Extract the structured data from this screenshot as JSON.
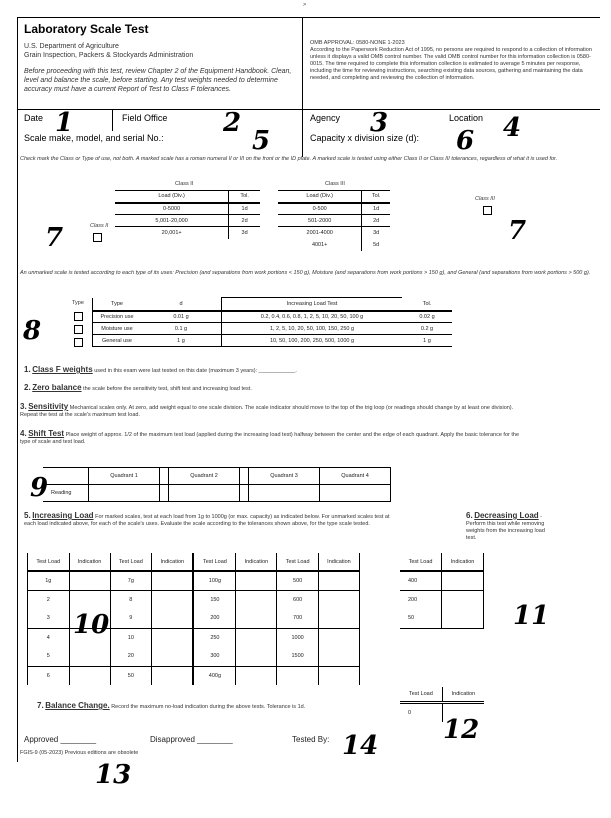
{
  "page_mark": ">",
  "header": {
    "title": "Laboratory Scale Test",
    "dept": "U.S. Department of Agriculture",
    "agency": "Grain Inspection, Packers & Stockyards Administration",
    "instructions": "Before proceeding with this test, review Chapter 2 of the Equipment Handbook. Clean, level and balance the scale, before starting. Any test weights needed to determine accuracy must have a current Report of Test to Class F tolerances.",
    "omb_title": "OMB APPROVAL: 0580-NONE 1-2023",
    "omb_text": "According to the Paperwork Reduction Act of 1995, no persons are required to respond to a collection of information unless it displays a valid OMB control number. The valid OMB control number for this information collection is 0580-0015. The time required to complete this information collection is estimated to average 5 minutes per response, including the time for reviewing instructions, searching existing data sources, gathering and maintaining the data needed, and completing and reviewing the collection of information."
  },
  "fields": {
    "date": "Date",
    "field_office": "Field Office",
    "agency": "Agency",
    "location": "Location",
    "scale": "Scale make, model, and serial No.:",
    "capacity": "Capacity x division size (d):"
  },
  "class_note": "Check mark the Class or Type of use, not both. A marked scale has a roman numeral II or III on the front or the ID plate. A marked scale is tested using either Class II or Class III tolerances, regardless of what it is used for.",
  "class2": {
    "title": "Class II",
    "label": "Class II",
    "headers": [
      "Load (Div.)",
      "Tol."
    ],
    "rows": [
      [
        "0-5000",
        "1d"
      ],
      [
        "5,001-20,000",
        "2d"
      ],
      [
        "20,001+",
        "3d"
      ]
    ]
  },
  "class3": {
    "title": "Class III",
    "label": "Class III",
    "headers": [
      "Load (Div.)",
      "Tol."
    ],
    "rows": [
      [
        "0-500",
        "1d"
      ],
      [
        "501-2000",
        "2d"
      ],
      [
        "2001-4000",
        "3d"
      ],
      [
        "4001+",
        "5d"
      ]
    ]
  },
  "unmarked_note": "An unmarked scale is tested according to each type of its uses: Precision (and separations from work portions < 150 g), Moisture (and separations from work portions > 150 g), and General (and separations from work portions > 500 g).",
  "type_table": {
    "label": "Type",
    "headers": [
      "Type",
      "d",
      "Increasing Load Test",
      "Tol."
    ],
    "rows": [
      [
        "Precision use",
        "0.01 g",
        "0.2, 0.4, 0.6, 0.8, 1, 2, 5, 10, 20, 50, 100 g",
        "0.02 g"
      ],
      [
        "Moisture use",
        "0.1 g",
        "1, 2, 5, 10, 20, 50, 100, 150, 250 g",
        "0.2 g"
      ],
      [
        "General use",
        "1 g",
        "10, 50, 100, 200, 250, 500, 1000 g",
        "1 g"
      ]
    ]
  },
  "steps": [
    {
      "n": "1.",
      "title": "Class F weights",
      "text": " used in this exam were last tested on this date (maximum 3 years): ____________."
    },
    {
      "n": "2.",
      "title": "Zero balance",
      "text": " the scale before the sensitivity test, shift test and increasing load test."
    },
    {
      "n": "3.",
      "title": "Sensitivity",
      "text": " Mechanical scales only. At zero, add weight equal to one scale division. The scale indicator should move to the top of the trig loop (or readings should change by at least one division). Repeat the test at the scale's maximum test load."
    },
    {
      "n": "4.",
      "title": "Shift Test",
      "text": " Place weight of approx. 1/2 of the maximum test load (applied during the increasing load test) halfway between the center and the edge of each quadrant. Apply the basic tolerance for the type of scale and test load."
    }
  ],
  "shift": {
    "row_label": "Reading",
    "quadrants": [
      "Quadrant 1",
      "Quadrant 2",
      "Quadrant 3",
      "Quadrant 4"
    ]
  },
  "increasing": {
    "n": "5.",
    "title": "Increasing Load",
    "text": " For marked scales, test at each load from 1g to 1000g (or max. capacity) as indicated below. For unmarked scales test at each load indicated above, for each of the scale's uses. Evaluate the scale according to the tolerances shown above, for the type scale tested.",
    "headers": [
      "Test Load",
      "Indication",
      "Test Load",
      "Indication",
      "Test Load",
      "Indication",
      "Test Load",
      "Indication"
    ],
    "cols": [
      [
        "1g",
        "2",
        "3",
        "4",
        "5",
        "6"
      ],
      [
        "7g",
        "8",
        "9",
        "10",
        "20",
        "50"
      ],
      [
        "100g",
        "150",
        "200",
        "250",
        "300",
        "400g"
      ],
      [
        "500",
        "600",
        "700",
        "1000",
        "1500",
        ""
      ]
    ]
  },
  "decreasing": {
    "n": "6.",
    "title": "Decreasing Load",
    "text": " - Perform this test while removing weights from the increasing load test.",
    "headers": [
      "Test Load",
      "Indication"
    ],
    "rows": [
      "400",
      "200",
      "50"
    ]
  },
  "balance": {
    "n": "7.",
    "title": "Balance Change.",
    "text": " Record the maximum no-load indication during the above tests. Tolerance is 1d.",
    "headers": [
      "Test Load",
      "Indication"
    ],
    "rows": [
      "0"
    ]
  },
  "footer": {
    "approved": "Approved ________",
    "disapproved": "Disapproved ________",
    "tested_by": "Tested By:",
    "form_no": "FGIS-9 (05-2023) Previous editions are obsolete"
  },
  "markers": [
    "1",
    "2",
    "3",
    "4",
    "5",
    "6",
    "7",
    "7",
    "8",
    "9",
    "10",
    "11",
    "12",
    "13",
    "14"
  ]
}
